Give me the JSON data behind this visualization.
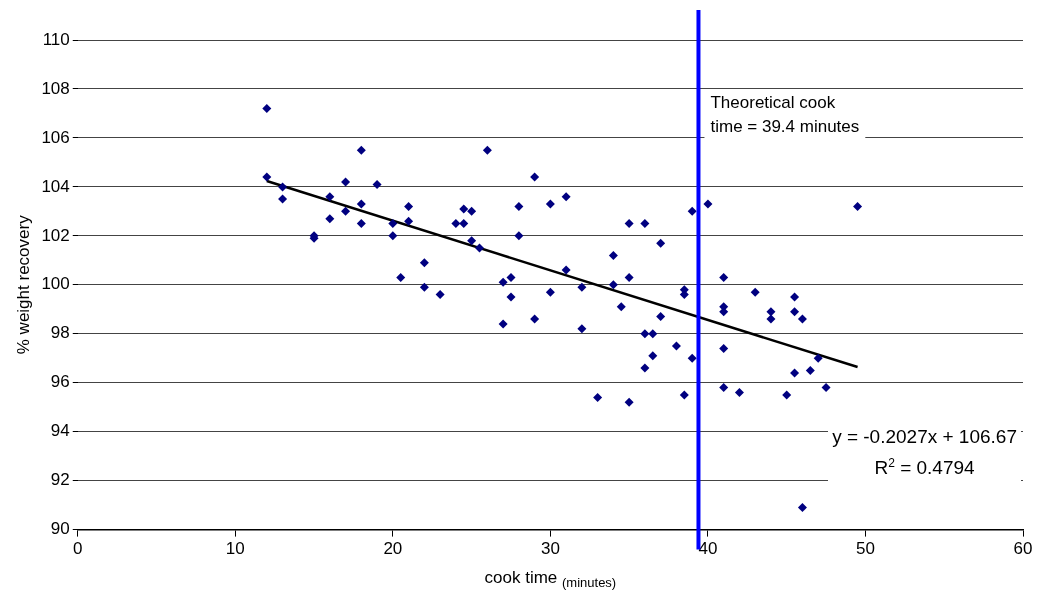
{
  "chart_data": {
    "type": "scatter",
    "xlabel": "cook time $_{(minutes)}$",
    "ylabel": "% weight recovery",
    "xlim": [
      0,
      60
    ],
    "xticks": [
      0,
      10,
      20,
      30,
      40,
      50,
      60
    ],
    "ylim": [
      90,
      110
    ],
    "yticks": [
      90,
      92,
      94,
      96,
      98,
      100,
      102,
      104,
      106,
      108,
      110
    ],
    "grid": "y",
    "legend": false,
    "marker": "diamond",
    "series": [
      {
        "color": "#000080",
        "x": [
          12,
          12,
          13,
          13,
          15,
          15,
          16,
          16,
          17,
          17,
          18,
          18,
          18,
          19,
          20,
          20,
          20.5,
          21,
          21,
          22,
          22,
          23,
          24,
          24.5,
          24.5,
          25,
          25,
          25.5,
          26,
          27,
          27,
          27.5,
          27.5,
          28,
          28,
          29,
          29,
          30,
          30,
          31,
          31,
          32,
          32,
          33,
          34,
          34,
          34.5,
          35,
          35,
          35,
          36,
          36,
          36,
          36.5,
          36.5,
          37,
          37,
          38,
          38.5,
          38.5,
          38.5,
          39,
          39,
          40,
          41,
          41,
          41,
          41,
          41,
          42,
          43,
          44,
          44,
          45,
          45.5,
          45.5,
          45.5,
          46,
          46.5,
          47,
          47.5,
          49.5,
          46
        ],
        "values": [
          107.2,
          104.4,
          104.0,
          103.5,
          102.0,
          101.9,
          103.6,
          102.7,
          104.2,
          103.0,
          105.5,
          103.3,
          102.5,
          104.1,
          102.5,
          102.0,
          100.3,
          103.2,
          102.6,
          100.9,
          99.9,
          99.6,
          102.5,
          103.1,
          102.5,
          103.0,
          101.8,
          101.5,
          105.5,
          100.1,
          98.4,
          100.3,
          99.5,
          103.2,
          102.0,
          104.4,
          98.6,
          103.3,
          99.7,
          103.6,
          100.6,
          99.9,
          98.2,
          95.4,
          101.2,
          100.0,
          99.1,
          102.5,
          100.3,
          95.2,
          102.5,
          98.0,
          96.6,
          98.0,
          97.1,
          101.7,
          98.7,
          97.5,
          99.8,
          99.6,
          95.5,
          97.0,
          103.0,
          103.3,
          100.3,
          99.1,
          98.9,
          97.4,
          95.8,
          95.6,
          99.7,
          98.9,
          98.6,
          95.5,
          99.5,
          98.9,
          96.4,
          98.6,
          96.5,
          97.0,
          95.8,
          103.2,
          90.9
        ]
      },
      {
        "type": "line",
        "color": "#000000",
        "marker": "none",
        "line_style": "solid",
        "x": [
          12,
          49.5
        ],
        "values": [
          104.24,
          96.64
        ]
      }
    ],
    "ref_lines": [
      {
        "axis": "x",
        "value": 39.4,
        "label": "Theoretical cook time = 39.4 minutes",
        "color": "#0000ff",
        "line_style": "solid"
      }
    ],
    "annotations": [
      "y = -0.2027x + 106.67",
      "R$^{2}$ = 0.4794"
    ]
  }
}
